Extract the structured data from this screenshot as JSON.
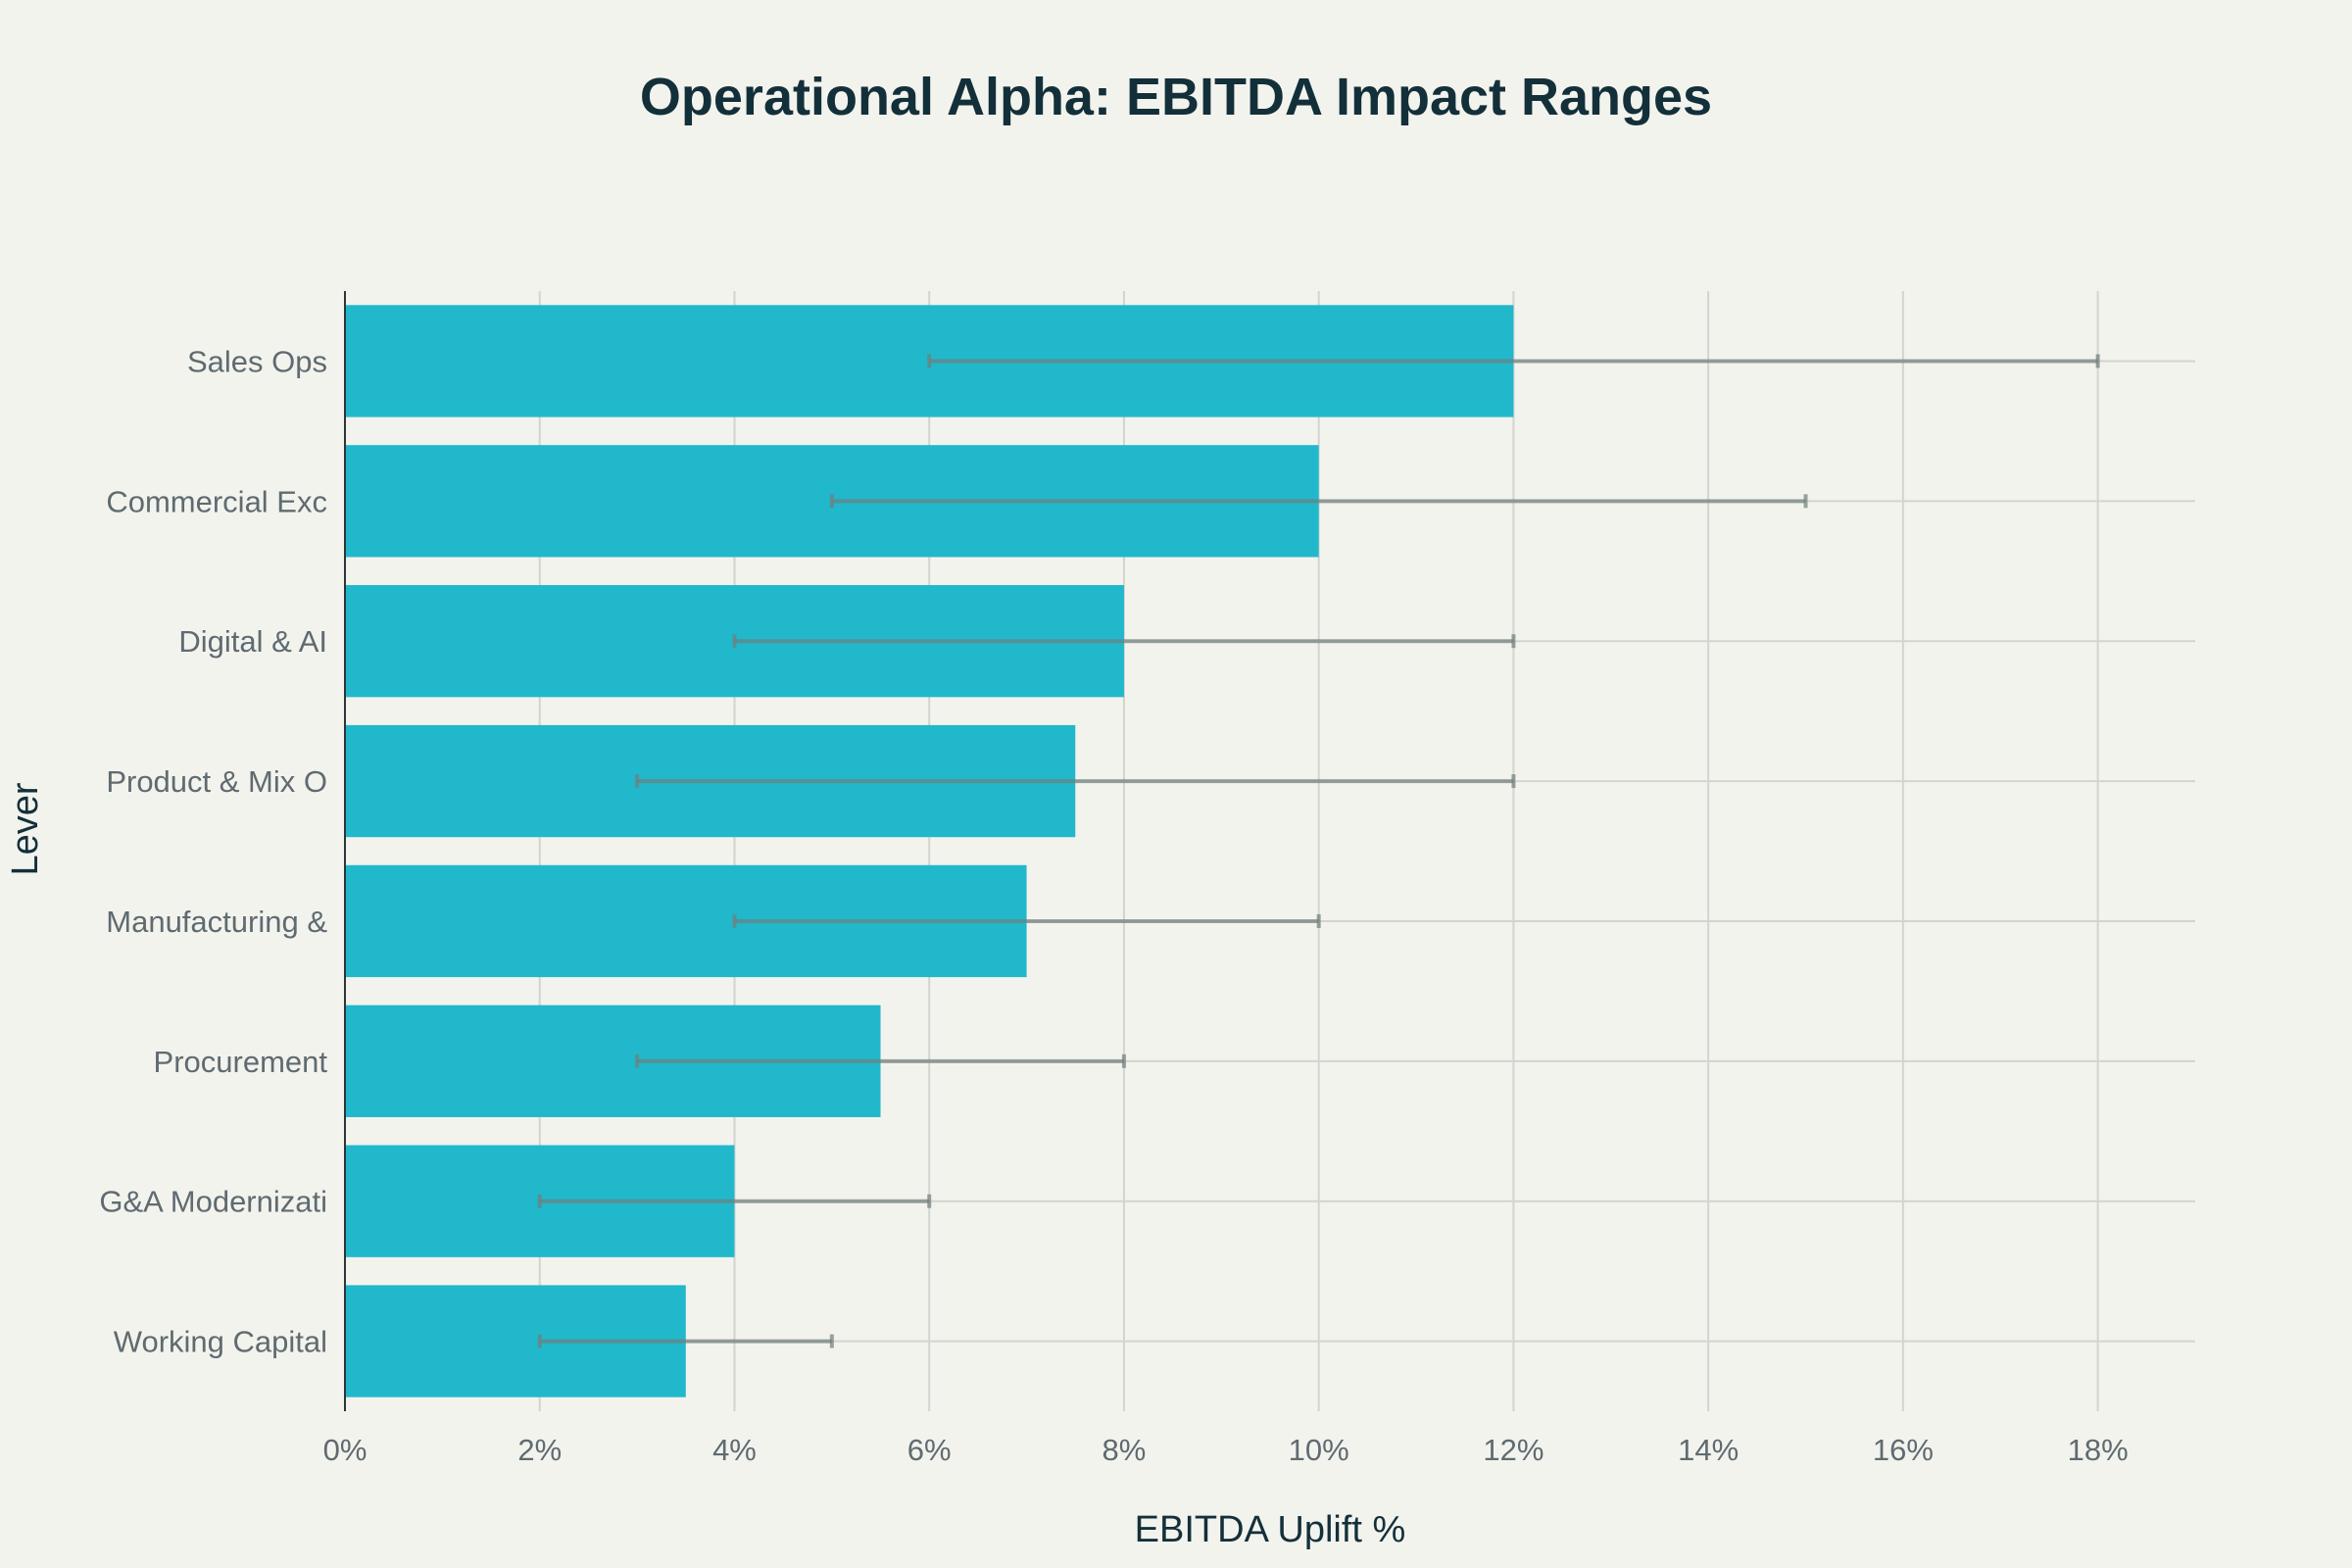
{
  "chart_data": {
    "type": "bar",
    "orientation": "horizontal",
    "title": "Operational Alpha: EBITDA Impact Ranges",
    "xlabel": "EBITDA Uplift %",
    "ylabel": "Lever",
    "xlim": [
      0,
      19
    ],
    "xticks": [
      0,
      2,
      4,
      6,
      8,
      10,
      12,
      14,
      16,
      18
    ],
    "xtick_labels": [
      "0%",
      "2%",
      "4%",
      "6%",
      "8%",
      "10%",
      "12%",
      "14%",
      "16%",
      "18%"
    ],
    "categories": [
      "Sales Ops",
      "Commercial Exc",
      "Digital & AI",
      "Product & Mix O",
      "Manufacturing &",
      "Procurement",
      "G&A Modernizati",
      "Working Capital"
    ],
    "values": [
      12,
      10,
      8,
      7.5,
      7,
      5.5,
      4,
      3.5
    ],
    "error_low": [
      6,
      5,
      4,
      3,
      4,
      3,
      2,
      2
    ],
    "error_high": [
      18,
      15,
      12,
      12,
      10,
      8,
      6,
      5
    ],
    "colors": {
      "bar": "#21b8cc",
      "error": "#6f7f7c",
      "background": "#f3f3ee",
      "title": "#13303a"
    }
  }
}
